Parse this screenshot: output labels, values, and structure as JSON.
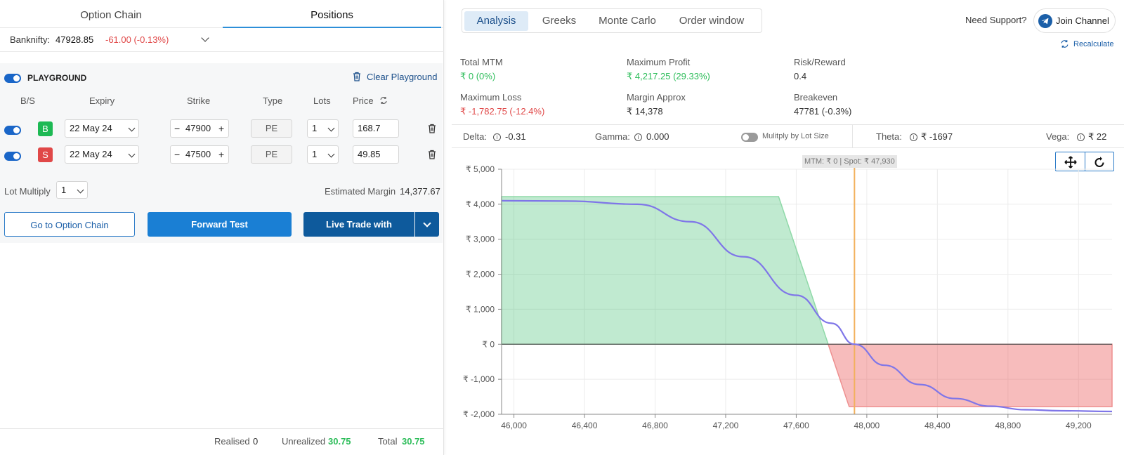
{
  "left_tabs": {
    "option_chain": "Option Chain",
    "positions": "Positions"
  },
  "index": {
    "name": "Banknifty:",
    "price": "47928.85",
    "change": "-61.00 (-0.13%)"
  },
  "playground": {
    "label": "PLAYGROUND",
    "clear": "Clear Playground"
  },
  "columns": {
    "bs": "B/S",
    "expiry": "Expiry",
    "strike": "Strike",
    "type": "Type",
    "lots": "Lots",
    "price": "Price"
  },
  "legs": [
    {
      "side": "B",
      "expiry": "22 May 24",
      "strike": "47900",
      "type": "PE",
      "lots": "1",
      "price": "168.7"
    },
    {
      "side": "S",
      "expiry": "22 May 24",
      "strike": "47500",
      "type": "PE",
      "lots": "1",
      "price": "49.85"
    }
  ],
  "lot_multiply": {
    "label": "Lot Multiply",
    "value": "1"
  },
  "margin": {
    "label": "Estimated Margin",
    "value": "14,377.67"
  },
  "buttons": {
    "go_chain": "Go to Option Chain",
    "forward": "Forward Test",
    "live": "Live Trade with"
  },
  "footer": {
    "realised_label": "Realised",
    "realised": "0",
    "unrealized_label": "Unrealized",
    "unrealized": "30.75",
    "total_label": "Total",
    "total": "30.75"
  },
  "right_tabs": [
    "Analysis",
    "Greeks",
    "Monte Carlo",
    "Order window"
  ],
  "support": {
    "label": "Need Support?",
    "join": "Join Channel",
    "recalc": "Recalculate"
  },
  "metrics": {
    "total_mtm": {
      "label": "Total MTM",
      "value": "₹ 0 (0%)"
    },
    "max_profit": {
      "label": "Maximum Profit",
      "value": "₹ 4,217.25 (29.33%)"
    },
    "risk_reward": {
      "label": "Risk/Reward",
      "value": "0.4"
    },
    "max_loss": {
      "label": "Maximum Loss",
      "value": "₹ -1,782.75 (-12.4%)"
    },
    "margin_approx": {
      "label": "Margin Approx",
      "value": "₹ 14,378"
    },
    "breakeven": {
      "label": "Breakeven",
      "value": "47781 (-0.3%)"
    }
  },
  "greeks": {
    "delta_label": "Delta:",
    "delta": "-0.31",
    "gamma_label": "Gamma:",
    "gamma": "0.000",
    "multiply_label": "Mulitply by Lot Size",
    "theta_label": "Theta:",
    "theta": "₹ -1697",
    "vega_label": "Vega:",
    "vega": "₹ 22"
  },
  "colors": {
    "accent": "#2d8fd8",
    "profit": "#2dbd5a",
    "loss": "#e04848",
    "primary_btn": "#1a7fd4",
    "dark_btn": "#0e5a9c"
  },
  "chart_data": {
    "type": "area",
    "crosshair_label": "MTM: ₹ 0  |  Spot: ₹ 47,930",
    "spot": 47930,
    "xlim": [
      45930,
      49390
    ],
    "ylim": [
      -2000,
      5000
    ],
    "x_ticks": [
      "46,000",
      "46,400",
      "46,800",
      "47,200",
      "47,600",
      "48,000",
      "48,400",
      "48,800",
      "49,200"
    ],
    "x_tick_values": [
      46000,
      46400,
      46800,
      47200,
      47600,
      48000,
      48400,
      48800,
      49200
    ],
    "y_ticks": [
      "₹ 5,000",
      "₹ 4,000",
      "₹ 3,000",
      "₹ 2,000",
      "₹ 1,000",
      "₹ 0",
      "₹ -1,000",
      "₹ -2,000"
    ],
    "y_tick_values": [
      5000,
      4000,
      3000,
      2000,
      1000,
      0,
      -1000,
      -2000
    ],
    "grid": true,
    "series": [
      {
        "values": [
          [
            45930,
            4217
          ],
          [
            47500,
            4217
          ],
          [
            47900,
            -1783
          ],
          [
            49390,
            -1783
          ]
        ]
      },
      {
        "values": [
          [
            45930,
            4100
          ],
          [
            46300,
            4090
          ],
          [
            46700,
            4000
          ],
          [
            47000,
            3500
          ],
          [
            47300,
            2500
          ],
          [
            47600,
            1400
          ],
          [
            47800,
            600
          ],
          [
            47930,
            0
          ],
          [
            48100,
            -600
          ],
          [
            48300,
            -1150
          ],
          [
            48500,
            -1550
          ],
          [
            48700,
            -1770
          ],
          [
            48900,
            -1870
          ],
          [
            49100,
            -1900
          ],
          [
            49390,
            -1920
          ]
        ]
      }
    ]
  }
}
